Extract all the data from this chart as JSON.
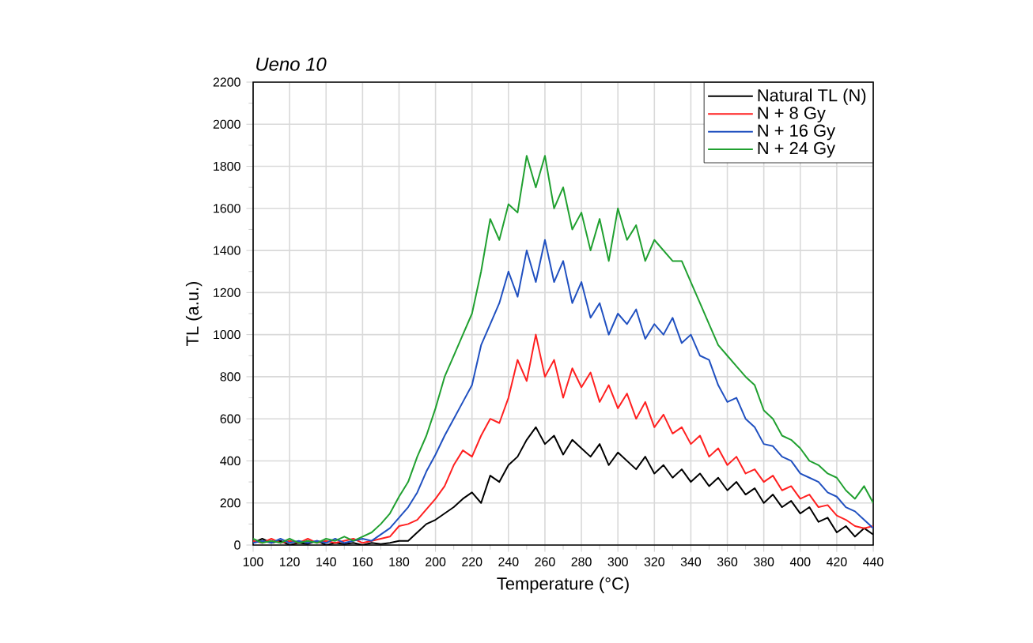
{
  "chart_data": {
    "type": "line",
    "title": "Ueno 10",
    "xlabel": "Temperature (°C)",
    "ylabel": "TL (a.u.)",
    "x": [
      100,
      105,
      110,
      115,
      120,
      125,
      130,
      135,
      140,
      145,
      150,
      155,
      160,
      165,
      170,
      175,
      180,
      185,
      190,
      195,
      200,
      205,
      210,
      215,
      220,
      225,
      230,
      235,
      240,
      245,
      250,
      255,
      260,
      265,
      270,
      275,
      280,
      285,
      290,
      295,
      300,
      305,
      310,
      315,
      320,
      325,
      330,
      335,
      340,
      345,
      350,
      355,
      360,
      365,
      370,
      375,
      380,
      385,
      390,
      395,
      400,
      405,
      410,
      415,
      420,
      425,
      430,
      435,
      440
    ],
    "series": [
      {
        "name": "Natural TL (N)",
        "color": "#000000",
        "values": [
          10,
          30,
          10,
          20,
          0,
          10,
          5,
          20,
          0,
          10,
          5,
          10,
          0,
          10,
          5,
          10,
          20,
          20,
          60,
          100,
          120,
          150,
          180,
          220,
          250,
          200,
          330,
          300,
          380,
          420,
          500,
          560,
          480,
          520,
          430,
          500,
          460,
          420,
          480,
          380,
          440,
          400,
          360,
          420,
          340,
          380,
          320,
          360,
          300,
          340,
          280,
          320,
          260,
          300,
          240,
          270,
          200,
          240,
          180,
          210,
          150,
          180,
          110,
          130,
          60,
          90,
          40,
          80,
          50
        ]
      },
      {
        "name": "N + 8 Gy",
        "color": "#ff2020",
        "values": [
          20,
          10,
          30,
          10,
          20,
          10,
          30,
          10,
          20,
          10,
          20,
          30,
          10,
          20,
          30,
          40,
          90,
          100,
          120,
          170,
          220,
          280,
          380,
          450,
          420,
          520,
          600,
          580,
          700,
          880,
          780,
          1000,
          800,
          880,
          700,
          840,
          750,
          820,
          680,
          760,
          650,
          720,
          600,
          680,
          560,
          620,
          530,
          560,
          480,
          520,
          420,
          460,
          380,
          420,
          340,
          360,
          300,
          330,
          260,
          280,
          220,
          240,
          180,
          190,
          140,
          120,
          90,
          80,
          90
        ]
      },
      {
        "name": "N + 16 Gy",
        "color": "#2050c0",
        "values": [
          10,
          20,
          10,
          30,
          10,
          20,
          10,
          20,
          10,
          30,
          10,
          20,
          30,
          20,
          50,
          80,
          130,
          180,
          250,
          350,
          430,
          520,
          600,
          680,
          760,
          950,
          1050,
          1150,
          1300,
          1180,
          1400,
          1250,
          1450,
          1250,
          1350,
          1150,
          1250,
          1080,
          1150,
          1000,
          1100,
          1050,
          1120,
          980,
          1050,
          1000,
          1080,
          960,
          1000,
          900,
          880,
          760,
          680,
          700,
          600,
          560,
          480,
          470,
          420,
          400,
          340,
          320,
          300,
          250,
          230,
          180,
          160,
          120,
          80
        ]
      },
      {
        "name": "N + 24 Gy",
        "color": "#20a030",
        "values": [
          30,
          10,
          20,
          10,
          30,
          10,
          20,
          10,
          30,
          20,
          40,
          20,
          40,
          60,
          100,
          150,
          230,
          300,
          420,
          520,
          650,
          800,
          900,
          1000,
          1100,
          1300,
          1550,
          1450,
          1620,
          1580,
          1850,
          1700,
          1850,
          1600,
          1700,
          1500,
          1580,
          1400,
          1550,
          1350,
          1600,
          1450,
          1520,
          1350,
          1450,
          1400,
          1350,
          1350,
          1250,
          1150,
          1050,
          950,
          900,
          850,
          800,
          760,
          640,
          600,
          520,
          500,
          460,
          400,
          380,
          340,
          320,
          260,
          220,
          280,
          200
        ]
      }
    ],
    "xlim": [
      100,
      440
    ],
    "ylim": [
      0,
      2200
    ],
    "xticks": [
      100,
      120,
      140,
      160,
      180,
      200,
      220,
      240,
      260,
      280,
      300,
      320,
      340,
      360,
      380,
      400,
      420,
      440
    ],
    "yticks": [
      0,
      200,
      400,
      600,
      800,
      1000,
      1200,
      1400,
      1600,
      1800,
      2000,
      2200
    ],
    "grid": true,
    "legend": "top right",
    "marker": "none",
    "line_style": "solid"
  }
}
